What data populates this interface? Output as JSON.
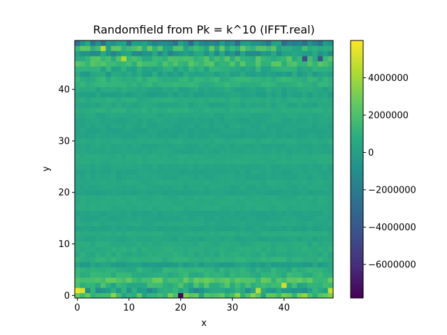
{
  "chart_data": {
    "type": "heatmap",
    "title": "Randomfield from Pk = k^10 (IFFT.real)",
    "xlabel": "x",
    "ylabel": "y",
    "grid_size": [
      50,
      50
    ],
    "xlim": [
      -0.5,
      49.5
    ],
    "ylim": [
      -0.5,
      49.5
    ],
    "xticks": [
      0,
      10,
      20,
      30,
      40
    ],
    "yticks": [
      0,
      10,
      20,
      30,
      40
    ],
    "origin": "lower",
    "colormap": "viridis",
    "color_range": [
      -7800000,
      6000000
    ],
    "colorbar_ticks": [
      4000000,
      2000000,
      0,
      -2000000,
      -4000000,
      -6000000
    ],
    "colorbar_tick_labels": [
      "4000000",
      "2000000",
      "0",
      "−2000000",
      "−4000000",
      "−6000000"
    ],
    "notable_values": [
      {
        "x": 0,
        "y": 1,
        "value": 5600000
      },
      {
        "x": 1,
        "y": 1,
        "value": 5200000
      },
      {
        "x": 20,
        "y": 0,
        "value": -7600000
      },
      {
        "x": 40,
        "y": 2,
        "value": 5000000
      },
      {
        "x": 49,
        "y": 1,
        "value": 4800000
      },
      {
        "x": 35,
        "y": 1,
        "value": 4500000
      },
      {
        "x": 9,
        "y": 46,
        "value": 4200000
      },
      {
        "x": 5,
        "y": 48,
        "value": 4500000
      },
      {
        "x": 44,
        "y": 46,
        "value": -4500000
      },
      {
        "x": 47,
        "y": 46,
        "value": -4000000
      }
    ],
    "description_rows": "Values vary strongly between rows (horizontal streaks) and weakly along each row; largest magnitudes near y=0-3 and y=44-49, near 0 around y=15-35."
  }
}
